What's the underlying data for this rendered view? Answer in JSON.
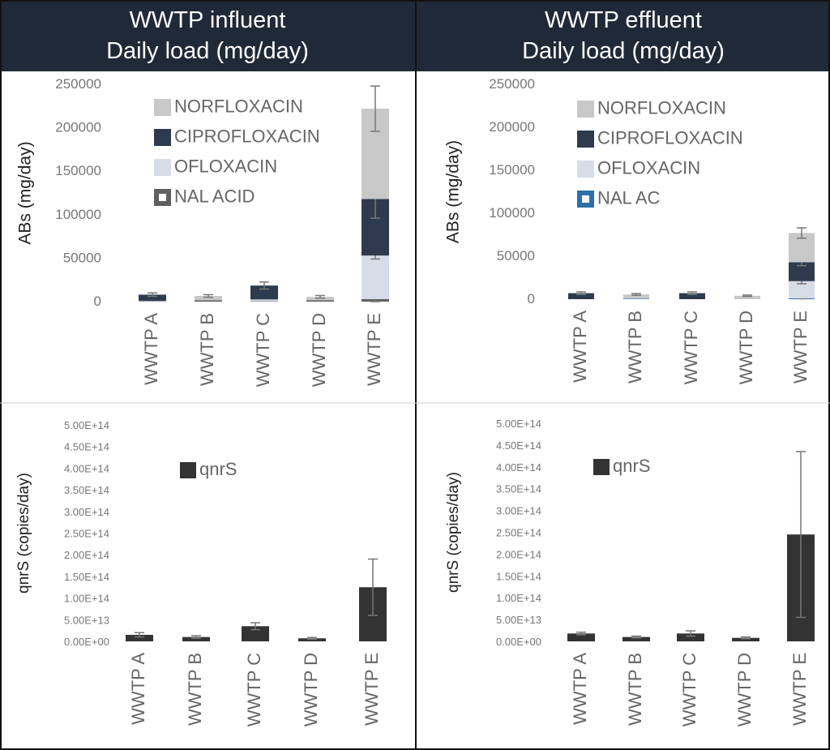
{
  "panels": [
    {
      "title_line1": "WWTP influent",
      "title_line2": "Daily load (mg/day)"
    },
    {
      "title_line1": "WWTP effluent",
      "title_line2": "Daily load (mg/day)"
    }
  ],
  "chart_data": [
    {
      "id": "influent-abs",
      "type": "bar",
      "stacked": true,
      "ylabel": "ABs (mg/day)",
      "ylim": [
        0,
        250000
      ],
      "yticks": [
        "0",
        "50000",
        "100000",
        "150000",
        "200000",
        "250000"
      ],
      "categories": [
        "WWTP A",
        "WWTP B",
        "WWTP C",
        "WWTP D",
        "WWTP E"
      ],
      "legend": [
        "NORFLOXACIN",
        "CIPROFLOXACIN",
        "OFLOXACIN",
        "NAL ACID"
      ],
      "series": [
        {
          "name": "NAL ACID",
          "color": "#606060",
          "values": [
            500,
            1000,
            500,
            1000,
            3000
          ],
          "err": [
            0,
            0,
            0,
            0,
            3000
          ]
        },
        {
          "name": "OFLOXACIN",
          "color": "#d6dde6",
          "values": [
            500,
            0,
            2000,
            0,
            50000
          ],
          "err": [
            0,
            0,
            0,
            0,
            4000
          ]
        },
        {
          "name": "CIPROFLOXACIN",
          "color": "#2e3b4e",
          "values": [
            7000,
            500,
            16000,
            500,
            65000
          ],
          "err": [
            2000,
            0,
            4000,
            0,
            22000
          ]
        },
        {
          "name": "NORFLOXACIN",
          "color": "#c8c8c8",
          "values": [
            0,
            5000,
            0,
            4000,
            104000
          ],
          "err": [
            0,
            1500,
            0,
            1500,
            26000
          ]
        }
      ]
    },
    {
      "id": "effluent-abs",
      "type": "bar",
      "stacked": true,
      "ylabel": "ABs (mg/day)",
      "ylim": [
        0,
        250000
      ],
      "yticks": [
        "0",
        "50000",
        "100000",
        "150000",
        "200000",
        "250000"
      ],
      "categories": [
        "WWTP A",
        "WWTP B",
        "WWTP C",
        "WWTP D",
        "WWTP E"
      ],
      "legend": [
        "NORFLOXACIN",
        "CIPROFLOXACIN",
        "OFLOXACIN",
        "NAL AC"
      ],
      "series": [
        {
          "name": "NAL AC",
          "color": "#2f6fa8",
          "values": [
            0,
            500,
            0,
            0,
            1000
          ],
          "err": [
            0,
            0,
            0,
            0,
            500
          ]
        },
        {
          "name": "OFLOXACIN",
          "color": "#d6dde6",
          "values": [
            0,
            0,
            0,
            0,
            20000
          ],
          "err": [
            0,
            0,
            0,
            0,
            3000
          ]
        },
        {
          "name": "CIPROFLOXACIN",
          "color": "#2e3b4e",
          "values": [
            7000,
            0,
            7000,
            0,
            22000
          ],
          "err": [
            1500,
            0,
            1500,
            0,
            4000
          ]
        },
        {
          "name": "NORFLOXACIN",
          "color": "#c8c8c8",
          "values": [
            0,
            5000,
            0,
            4000,
            34000
          ],
          "err": [
            0,
            1000,
            0,
            800,
            6000
          ]
        }
      ]
    },
    {
      "id": "influent-qnrs",
      "type": "bar",
      "ylabel": "qnrS (copies/day)",
      "ylim": [
        0,
        500000000000000.0
      ],
      "yticks": [
        "0.00E+00",
        "5.00E+13",
        "1.00E+14",
        "1.50E+14",
        "2.00E+14",
        "2.50E+14",
        "3.00E+14",
        "3.50E+14",
        "4.00E+14",
        "4.50E+14",
        "5.00E+14"
      ],
      "categories": [
        "WWTP A",
        "WWTP B",
        "WWTP C",
        "WWTP D",
        "WWTP E"
      ],
      "legend": [
        "qnrS"
      ],
      "series": [
        {
          "name": "qnrS",
          "color": "#333333",
          "values": [
            15000000000000.0,
            10000000000000.0,
            35000000000000.0,
            7000000000000.0,
            125000000000000.0
          ],
          "err": [
            5000000000000.0,
            3000000000000.0,
            8000000000000.0,
            2000000000000.0,
            65000000000000.0
          ]
        }
      ]
    },
    {
      "id": "effluent-qnrs",
      "type": "bar",
      "ylabel": "qnrS (copies/day)",
      "ylim": [
        0,
        500000000000000.0
      ],
      "yticks": [
        "0.00E+00",
        "5.00E+13",
        "1.00E+14",
        "1.50E+14",
        "2.00E+14",
        "2.50E+14",
        "3.00E+14",
        "3.50E+14",
        "4.00E+14",
        "4.50E+14",
        "5.00E+14"
      ],
      "categories": [
        "WWTP A",
        "WWTP B",
        "WWTP C",
        "WWTP D",
        "WWTP E"
      ],
      "legend": [
        "qnrS"
      ],
      "series": [
        {
          "name": "qnrS",
          "color": "#333333",
          "values": [
            18000000000000.0,
            10000000000000.0,
            18000000000000.0,
            8000000000000.0,
            245000000000000.0
          ],
          "err": [
            3000000000000.0,
            2000000000000.0,
            6000000000000.0,
            2000000000000.0,
            190000000000000.0
          ]
        }
      ]
    }
  ]
}
